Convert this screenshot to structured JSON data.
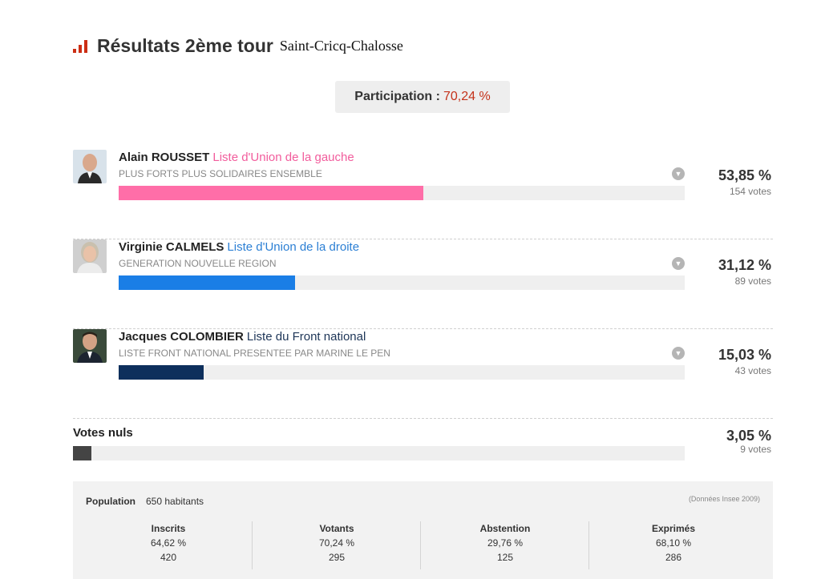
{
  "header": {
    "title": "Résultats 2ème tour",
    "commune": "Saint-Cricq-Chalosse"
  },
  "participation": {
    "label": "Participation :",
    "value": "70,24 %"
  },
  "candidates": [
    {
      "name": "Alain ROUSSET",
      "list": "Liste d'Union de la gauche",
      "slogan": "PLUS FORTS PLUS SOLIDAIRES ENSEMBLE",
      "percent": "53,85 %",
      "votes": "154 votes",
      "share": 0.5385,
      "color": "#ff6ea8"
    },
    {
      "name": "Virginie CALMELS",
      "list": "Liste d'Union de la droite",
      "slogan": "GENERATION NOUVELLE REGION",
      "percent": "31,12 %",
      "votes": "89 votes",
      "share": 0.3112,
      "color": "#1a7ee6"
    },
    {
      "name": "Jacques COLOMBIER",
      "list": "Liste du Front national",
      "slogan": "LISTE FRONT NATIONAL PRESENTEE PAR MARINE LE PEN",
      "percent": "15,03 %",
      "votes": "43 votes",
      "share": 0.1503,
      "color": "#0d2f5c"
    }
  ],
  "nuls": {
    "label": "Votes nuls",
    "percent": "3,05 %",
    "votes": "9 votes",
    "share": 0.0305,
    "color": "#444444"
  },
  "stats": {
    "population_label": "Population",
    "population_value": "650 habitants",
    "source": "(Données Insee 2009)",
    "columns": [
      {
        "title": "Inscrits",
        "percent": "64,62 %",
        "count": "420"
      },
      {
        "title": "Votants",
        "percent": "70,24 %",
        "count": "295"
      },
      {
        "title": "Abstention",
        "percent": "29,76 %",
        "count": "125"
      },
      {
        "title": "Exprimés",
        "percent": "68,10 %",
        "count": "286"
      }
    ]
  }
}
